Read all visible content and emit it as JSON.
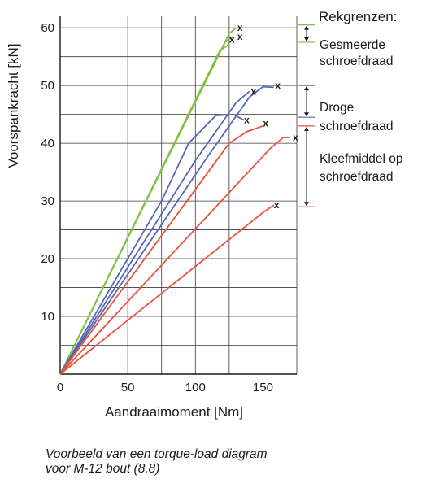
{
  "chart_data": {
    "type": "line",
    "xlabel": "Aandraaimoment [Nm]",
    "ylabel": "Voorspankracht [kN]",
    "xlim": [
      0,
      175
    ],
    "ylim": [
      0,
      62
    ],
    "x_ticks": [
      "0",
      "50",
      "100",
      "150"
    ],
    "y_ticks": [
      "10",
      "20",
      "30",
      "40",
      "50",
      "60"
    ],
    "grid": true,
    "legend_title": "Rekgrenzen:",
    "groups": [
      {
        "name": "Gesmeerde schroefdraad",
        "color": "#7dc242",
        "bracket": [
          57.5,
          60.5
        ],
        "series": [
          {
            "points": [
              [
                0,
                0
              ],
              [
                125,
                59
              ],
              [
                130,
                60
              ]
            ],
            "end_x": 133,
            "end_y": 60
          },
          {
            "points": [
              [
                0,
                0
              ],
              [
                122,
                57.5
              ],
              [
                128,
                58.5
              ]
            ],
            "end_x": 133,
            "end_y": 58.5
          },
          {
            "points": [
              [
                0,
                0
              ],
              [
                118,
                56
              ],
              [
                124,
                57
              ]
            ],
            "end_x": 127,
            "end_y": 58
          }
        ]
      },
      {
        "name": "Droge schroefdraad",
        "color": "#5568b8",
        "bracket": [
          44.5,
          50
        ],
        "series": [
          {
            "points": [
              [
                0,
                0
              ],
              [
                75,
                30
              ],
              [
                95,
                40
              ],
              [
                115,
                44.8
              ],
              [
                128,
                45
              ],
              [
                136,
                44
              ]
            ],
            "end_x": 138,
            "end_y": 44
          },
          {
            "points": [
              [
                0,
                0
              ],
              [
                100,
                37
              ],
              [
                130,
                47
              ],
              [
                140,
                49
              ]
            ],
            "end_x": 143,
            "end_y": 49
          },
          {
            "points": [
              [
                0,
                0
              ],
              [
                110,
                38
              ],
              [
                140,
                48
              ],
              [
                150,
                49.8
              ],
              [
                158,
                49.7
              ]
            ],
            "end_x": 161,
            "end_y": 50
          }
        ]
      },
      {
        "name": "Kleefmiddel op schroefdraad",
        "color": "#e8523f",
        "bracket": [
          29,
          43
        ],
        "series": [
          {
            "points": [
              [
                0,
                0
              ],
              [
                125,
                40
              ],
              [
                138,
                42
              ],
              [
                150,
                43
              ]
            ],
            "end_x": 152,
            "end_y": 43.5
          },
          {
            "points": [
              [
                0,
                0
              ],
              [
                155,
                39
              ],
              [
                165,
                41
              ],
              [
                170,
                41
              ]
            ],
            "end_x": 174,
            "end_y": 41
          },
          {
            "points": [
              [
                0,
                0
              ],
              [
                150,
                28
              ],
              [
                158,
                29.3
              ]
            ],
            "end_x": 160,
            "end_y": 29.3
          }
        ]
      }
    ],
    "marker": "x"
  },
  "caption": {
    "line1": "Voorbeeld van een torque-load diagram",
    "line2": "voor M-12 bout (8.8)"
  }
}
